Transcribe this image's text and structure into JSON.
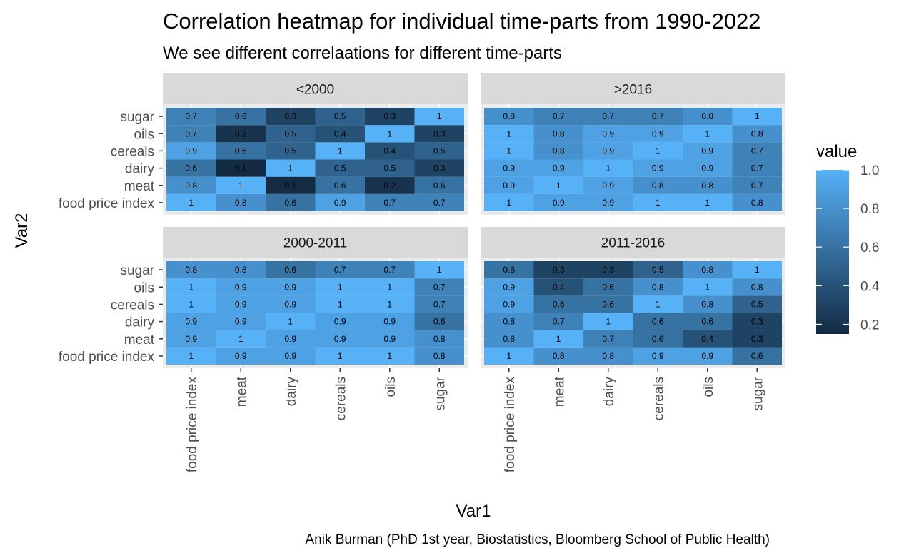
{
  "chart_data": {
    "type": "heatmap",
    "title": "Correlation heatmap for individual time-parts from 1990-2022",
    "subtitle": "We see different correlaations for different time-parts",
    "xlabel": "Var1",
    "ylabel": "Var2",
    "caption": "Anik Burman (PhD 1st year, Biostatistics, Bloomberg School of Public Health)",
    "x_categories": [
      "food price index",
      "meat",
      "dairy",
      "cereals",
      "oils",
      "sugar"
    ],
    "y_categories": [
      "food price index",
      "meat",
      "dairy",
      "cereals",
      "oils",
      "sugar"
    ],
    "legend": {
      "title": "value",
      "ticks": [
        "0.2",
        "0.4",
        "0.6",
        "0.8",
        "1.0"
      ],
      "tick_values": [
        0.2,
        0.4,
        0.6,
        0.8,
        1.0
      ],
      "range": [
        0.15,
        1.0
      ],
      "placement": "right"
    },
    "colors": {
      "low": "#132B43",
      "high": "#56B1F7",
      "panel_bg": "#EBEBEB",
      "strip_bg": "#D9D9D9"
    },
    "grid": true,
    "panels": [
      {
        "label": "<2000",
        "values": [
          [
            1,
            0.8,
            0.6,
            0.9,
            0.7,
            0.7
          ],
          [
            0.8,
            1,
            0.1,
            0.6,
            0.2,
            0.6
          ],
          [
            0.6,
            0.1,
            1,
            0.5,
            0.5,
            0.3
          ],
          [
            0.9,
            0.6,
            0.5,
            1,
            0.4,
            0.5
          ],
          [
            0.7,
            0.2,
            0.5,
            0.4,
            1,
            0.3
          ],
          [
            0.7,
            0.6,
            0.3,
            0.5,
            0.3,
            1
          ]
        ]
      },
      {
        "label": ">2016",
        "values": [
          [
            1,
            0.9,
            0.9,
            1,
            1,
            0.8
          ],
          [
            0.9,
            1,
            0.9,
            0.8,
            0.8,
            0.7
          ],
          [
            0.9,
            0.9,
            1,
            0.9,
            0.9,
            0.7
          ],
          [
            1,
            0.8,
            0.9,
            1,
            0.9,
            0.7
          ],
          [
            1,
            0.8,
            0.9,
            0.9,
            1,
            0.8
          ],
          [
            0.8,
            0.7,
            0.7,
            0.7,
            0.8,
            1
          ]
        ]
      },
      {
        "label": "2000-2011",
        "values": [
          [
            1,
            0.9,
            0.9,
            1,
            1,
            0.8
          ],
          [
            0.9,
            1,
            0.9,
            0.9,
            0.9,
            0.8
          ],
          [
            0.9,
            0.9,
            1,
            0.9,
            0.9,
            0.6
          ],
          [
            1,
            0.9,
            0.9,
            1,
            1,
            0.7
          ],
          [
            1,
            0.9,
            0.9,
            1,
            1,
            0.7
          ],
          [
            0.8,
            0.8,
            0.6,
            0.7,
            0.7,
            1
          ]
        ]
      },
      {
        "label": "2011-2016",
        "values": [
          [
            1,
            0.8,
            0.8,
            0.9,
            0.9,
            0.6
          ],
          [
            0.8,
            1,
            0.7,
            0.6,
            0.4,
            0.3
          ],
          [
            0.8,
            0.7,
            1,
            0.6,
            0.6,
            0.3
          ],
          [
            0.9,
            0.6,
            0.6,
            1,
            0.8,
            0.5
          ],
          [
            0.9,
            0.4,
            0.6,
            0.8,
            1,
            0.8
          ],
          [
            0.6,
            0.3,
            0.3,
            0.5,
            0.8,
            1
          ]
        ]
      }
    ]
  }
}
